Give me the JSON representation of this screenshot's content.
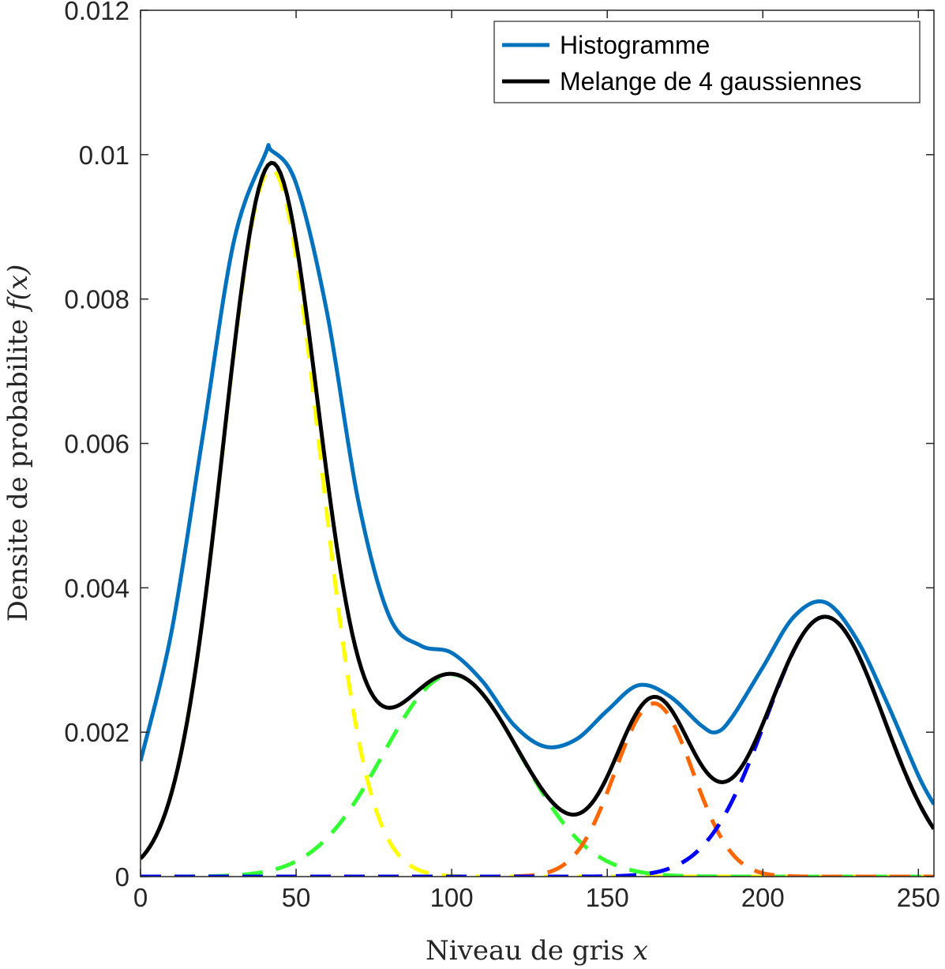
{
  "chart_data": {
    "type": "line",
    "title": "",
    "xlabel": "Niveau de gris",
    "xlabel_math": "x",
    "ylabel": "Densite de probabilite",
    "ylabel_math": "f(x)",
    "xlim": [
      0,
      255
    ],
    "ylim": [
      0,
      0.012
    ],
    "x_ticks": [
      0,
      50,
      100,
      150,
      200,
      250
    ],
    "y_ticks": [
      0,
      0.002,
      0.004,
      0.006,
      0.008,
      0.01,
      0.012
    ],
    "x_tick_labels": [
      "0",
      "50",
      "100",
      "150",
      "200",
      "250"
    ],
    "y_tick_labels": [
      "0",
      "0.002",
      "0.004",
      "0.006",
      "0.008",
      "0.01",
      "0.012"
    ],
    "grid": false,
    "legend_position": "top-right",
    "components": [
      {
        "color": "#FFFF00",
        "style": "dashed",
        "mean": 42,
        "sd": 15.5,
        "peak": 0.0098
      },
      {
        "color": "#33FF33",
        "style": "dashed",
        "mean": 100,
        "sd": 22,
        "peak": 0.0028
      },
      {
        "color": "#FF6600",
        "style": "dashed",
        "mean": 165,
        "sd": 12.5,
        "peak": 0.0024
      },
      {
        "color": "#0000FF",
        "style": "dashed",
        "mean": 220,
        "sd": 19,
        "peak": 0.0036
      }
    ],
    "series": [
      {
        "name": "Histogramme",
        "color": "#0072BD",
        "style": "solid",
        "x": [
          0,
          10,
          20,
          30,
          40,
          42,
          50,
          60,
          70,
          80,
          90,
          100,
          110,
          120,
          130,
          140,
          150,
          160,
          170,
          180,
          185,
          190,
          200,
          210,
          220,
          230,
          240,
          250,
          255
        ],
        "y": [
          0.0016,
          0.0034,
          0.0061,
          0.0088,
          0.01,
          0.01006,
          0.0096,
          0.0078,
          0.0052,
          0.0036,
          0.0032,
          0.0031,
          0.0027,
          0.0021,
          0.0018,
          0.0019,
          0.0023,
          0.00265,
          0.0025,
          0.0021,
          0.002,
          0.0022,
          0.0029,
          0.0036,
          0.0038,
          0.0033,
          0.0024,
          0.0014,
          0.001
        ]
      },
      {
        "name": "Melange de 4 gaussiennes",
        "color": "#000000",
        "style": "solid"
      }
    ],
    "legend": [
      "Histogramme",
      "Melange de 4 gaussiennes"
    ]
  }
}
